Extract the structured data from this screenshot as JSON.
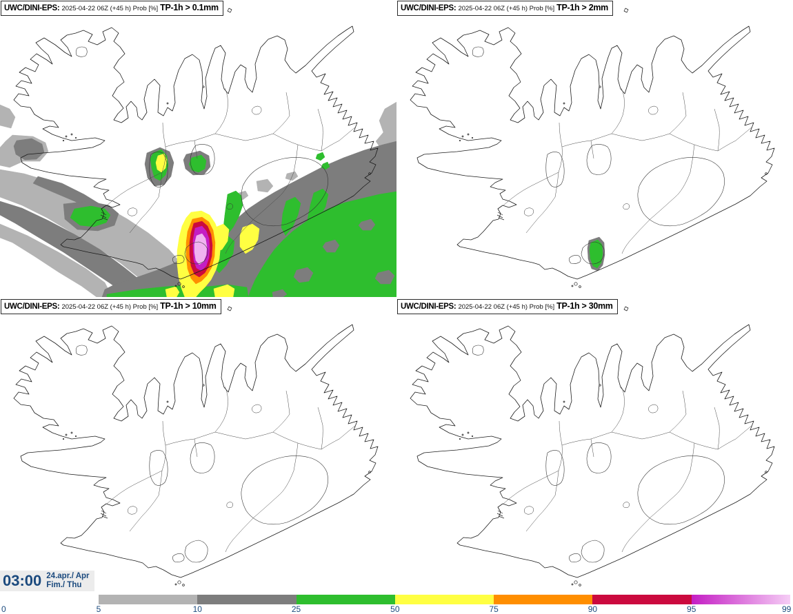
{
  "panels": [
    {
      "model": "UWC/DINI-EPS:",
      "meta": "2025-04-22 06Z (+45 h) Prob [%]",
      "threshold": "TP-1h > 0.1mm"
    },
    {
      "model": "UWC/DINI-EPS:",
      "meta": "2025-04-22 06Z (+45 h) Prob [%]",
      "threshold": "TP-1h > 2mm"
    },
    {
      "model": "UWC/DINI-EPS:",
      "meta": "2025-04-22 06Z (+45 h) Prob [%]",
      "threshold": "TP-1h > 10mm"
    },
    {
      "model": "UWC/DINI-EPS:",
      "meta": "2025-04-22 06Z (+45 h) Prob [%]",
      "threshold": "TP-1h > 30mm"
    }
  ],
  "footer": {
    "time": "03:00",
    "date_line1": "24.apr./ Apr",
    "date_line2": "Fim./ Thu"
  },
  "legend": {
    "start_label": "0",
    "boundary_labels": [
      "5",
      "10",
      "25",
      "50",
      "75",
      "90",
      "95",
      "99"
    ],
    "segments": [
      {
        "from": "5",
        "to": "10",
        "color": "#b3b3b3"
      },
      {
        "from": "10",
        "to": "25",
        "color": "#7d7d7d"
      },
      {
        "from": "25",
        "to": "50",
        "color": "#2ebe2e"
      },
      {
        "from": "50",
        "to": "75",
        "color": "#ffff42"
      },
      {
        "from": "75",
        "to": "90",
        "color": "#ff8e00"
      },
      {
        "from": "90",
        "to": "95",
        "color": "#cb0a3e"
      },
      {
        "from": "95",
        "to": "99",
        "color": "#c41ec4",
        "gradient_to": "#f5cdf5"
      }
    ]
  },
  "colors": {
    "prob_5": "#b3b3b3",
    "prob_10": "#7d7d7d",
    "prob_25": "#2ebe2e",
    "prob_50": "#ffff42",
    "prob_75": "#ff8e00",
    "prob_90": "#cb0a3e",
    "prob_95": "#c41ec4",
    "prob_99": "#f0b2f0",
    "label_text": "#1b4a7e",
    "timebox_bg": "#ececec",
    "coastline": "#1a1a1a"
  }
}
